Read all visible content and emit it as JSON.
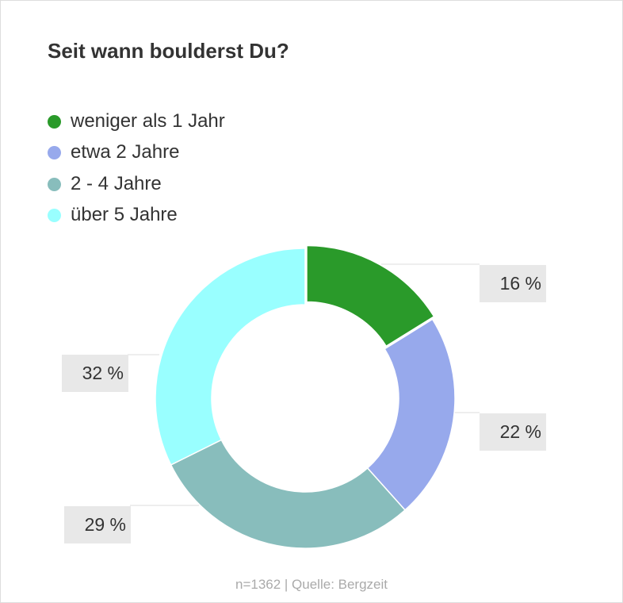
{
  "chart_data": {
    "type": "pie",
    "title": "Seit wann boulderst Du?",
    "categories": [
      "weniger als 1 Jahr",
      "etwa 2 Jahre",
      "2 - 4 Jahre",
      "über 5 Jahre"
    ],
    "values": [
      16,
      22,
      29,
      32
    ],
    "labels": [
      "16 %",
      "22 %",
      "29 %",
      "32 %"
    ],
    "colors": [
      "#2a9a2a",
      "#97a9ec",
      "#88bdbc",
      "#99ffff"
    ],
    "legend_position": "top-left",
    "footer": "n=1362 | Quelle: Bergzeit"
  }
}
